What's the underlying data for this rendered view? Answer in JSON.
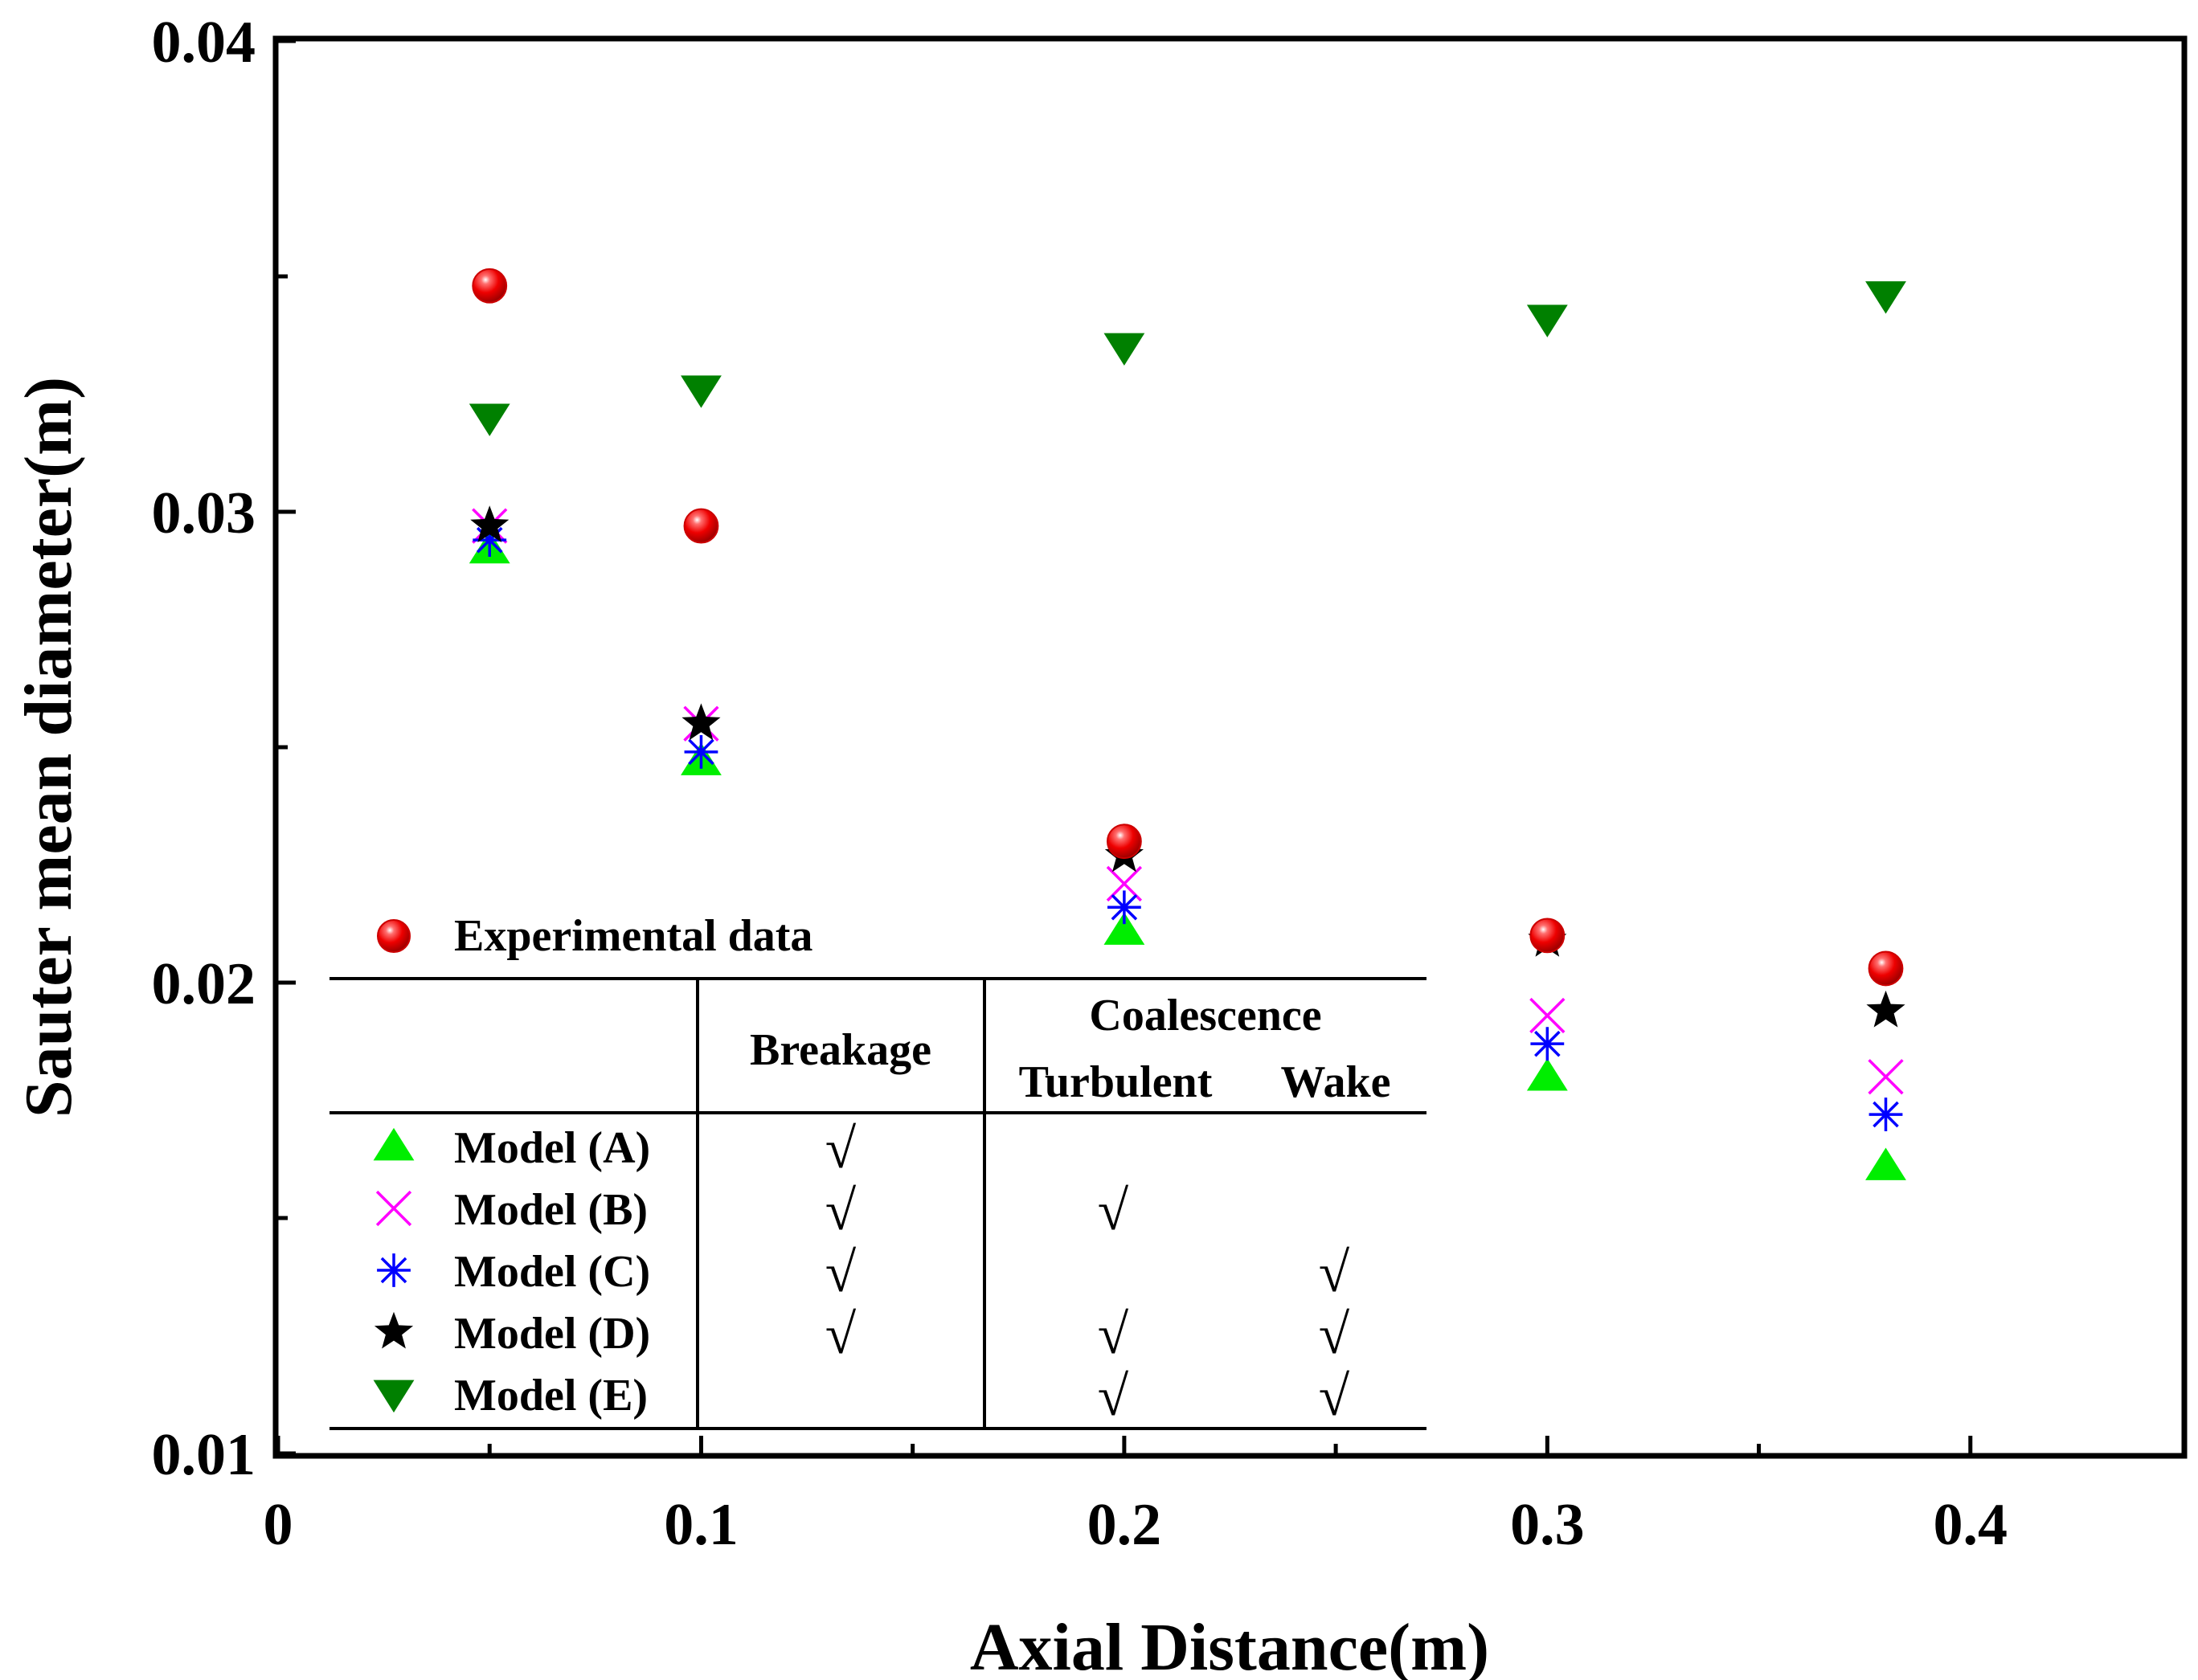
{
  "chart_data": {
    "type": "scatter",
    "xlabel": "Axial Distance(m)",
    "ylabel": "Sauter mean diameter(m)",
    "xlim": [
      0,
      0.45
    ],
    "ylim": [
      0.01,
      0.04
    ],
    "x_ticks": [
      "0",
      "0.1",
      "0.2",
      "0.3",
      "0.4"
    ],
    "y_ticks": [
      "0.01",
      "0.02",
      "0.03",
      "0.04"
    ],
    "series": [
      {
        "name": "Experimental data",
        "marker": "circle",
        "color": "#ee0000",
        "x": [
          0.05,
          0.1,
          0.2,
          0.3,
          0.38
        ],
        "y": [
          0.0348,
          0.0297,
          0.023,
          0.021,
          0.0203
        ]
      },
      {
        "name": "Model (A)",
        "marker": "triangle-up",
        "color": "#00ee00",
        "x": [
          0.05,
          0.1,
          0.2,
          0.3,
          0.38
        ],
        "y": [
          0.0292,
          0.0247,
          0.0211,
          0.018,
          0.0161
        ]
      },
      {
        "name": "Model (B)",
        "marker": "x",
        "color": "#ff00ff",
        "x": [
          0.05,
          0.1,
          0.2,
          0.3,
          0.38
        ],
        "y": [
          0.0297,
          0.0255,
          0.0221,
          0.0193,
          0.018
        ]
      },
      {
        "name": "Model (C)",
        "marker": "asterisk",
        "color": "#0000ff",
        "x": [
          0.05,
          0.1,
          0.2,
          0.3,
          0.38
        ],
        "y": [
          0.0294,
          0.0249,
          0.0216,
          0.0187,
          0.0172
        ]
      },
      {
        "name": "Model (D)",
        "marker": "star",
        "color": "#000000",
        "x": [
          0.05,
          0.1,
          0.2,
          0.3,
          0.38
        ],
        "y": [
          0.0297,
          0.0255,
          0.0227,
          0.0209,
          0.0194
        ]
      },
      {
        "name": "Model (E)",
        "marker": "triangle-down",
        "color": "#008000",
        "x": [
          0.05,
          0.1,
          0.2,
          0.3,
          0.38
        ],
        "y": [
          0.032,
          0.0326,
          0.0335,
          0.0341,
          0.0346
        ]
      }
    ],
    "legend": {
      "position": "lower-left",
      "header": {
        "breakage": "Breakage",
        "coalescence": "Coalescence",
        "turbulent": "Turbulent",
        "wake": "Wake"
      },
      "check_symbol": "√",
      "rows": [
        {
          "label": "Model (A)",
          "breakage": true,
          "turbulent": false,
          "wake": false
        },
        {
          "label": "Model (B)",
          "breakage": true,
          "turbulent": true,
          "wake": false
        },
        {
          "label": "Model (C)",
          "breakage": true,
          "turbulent": false,
          "wake": true
        },
        {
          "label": "Model (D)",
          "breakage": true,
          "turbulent": true,
          "wake": true
        },
        {
          "label": "Model (E)",
          "breakage": false,
          "turbulent": true,
          "wake": true
        }
      ]
    }
  }
}
